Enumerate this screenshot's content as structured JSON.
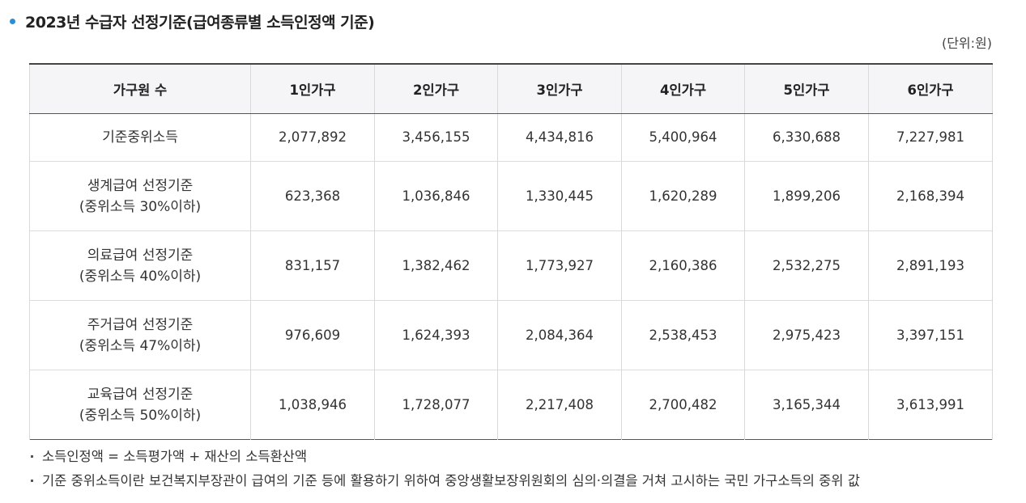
{
  "section": {
    "title": "2023년 수급자 선정기준(급여종류별 소득인정액 기준)",
    "unit": "(단위:원)"
  },
  "table": {
    "headers": [
      "가구원 수",
      "1인가구",
      "2인가구",
      "3인가구",
      "4인가구",
      "5인가구",
      "6인가구"
    ],
    "rows": [
      {
        "label_line1": "기준중위소득",
        "label_line2": "",
        "values": [
          "2,077,892",
          "3,456,155",
          "4,434,816",
          "5,400,964",
          "6,330,688",
          "7,227,981"
        ]
      },
      {
        "label_line1": "생계급여 선정기준",
        "label_line2": "(중위소득 30%이하)",
        "values": [
          "623,368",
          "1,036,846",
          "1,330,445",
          "1,620,289",
          "1,899,206",
          "2,168,394"
        ]
      },
      {
        "label_line1": "의료급여 선정기준",
        "label_line2": "(중위소득 40%이하)",
        "values": [
          "831,157",
          "1,382,462",
          "1,773,927",
          "2,160,386",
          "2,532,275",
          "2,891,193"
        ]
      },
      {
        "label_line1": "주거급여 선정기준",
        "label_line2": "(중위소득 47%이하)",
        "values": [
          "976,609",
          "1,624,393",
          "2,084,364",
          "2,538,453",
          "2,975,423",
          "3,397,151"
        ]
      },
      {
        "label_line1": "교육급여 선정기준",
        "label_line2": "(중위소득 50%이하)",
        "values": [
          "1,038,946",
          "1,728,077",
          "2,217,408",
          "2,700,482",
          "3,165,344",
          "3,613,991"
        ]
      }
    ]
  },
  "notes": [
    "소득인정액 = 소득평가액 + 재산의 소득환산액",
    "기준 중위소득이란 보건복지부장관이 급여의 기준 등에 활용하기 위하여 중앙생활보장위원회의 심의·의결을 거쳐 고시하는 국민 가구소득의 중위 값"
  ],
  "colors": {
    "bullet": "#2a8ed6",
    "header_bg": "#f5f5f7",
    "border": "#d9d9d9",
    "text": "#333333"
  }
}
